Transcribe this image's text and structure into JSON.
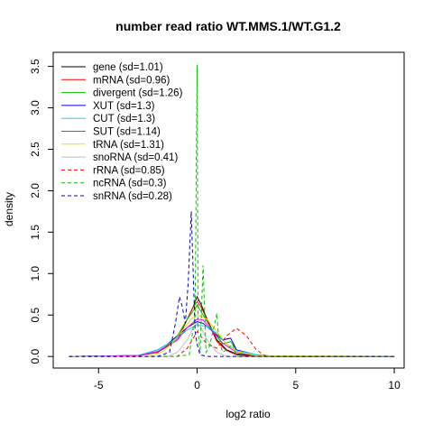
{
  "chart_data": {
    "type": "line",
    "title": "number read ratio WT.MMS.1/WT.G1.2",
    "xlabel": "log2 ratio",
    "ylabel": "density",
    "xlim": [
      -7.3,
      10.5
    ],
    "ylim": [
      -0.14,
      3.67
    ],
    "xticks": [
      -5,
      0,
      5,
      10
    ],
    "yticks": [
      0.0,
      0.5,
      1.0,
      1.5,
      2.0,
      2.5,
      3.0,
      3.5
    ],
    "xtick_labels": [
      "-5",
      "0",
      "5",
      "10"
    ],
    "ytick_labels": [
      "0.0",
      "0.5",
      "1.0",
      "1.5",
      "2.0",
      "2.5",
      "3.0",
      "3.5"
    ],
    "legend_position": "top-left",
    "grid": false,
    "series": [
      {
        "name": "gene (sd=1.01)",
        "color": "#000000",
        "dash": "solid",
        "points": [
          [
            -6.5,
            0
          ],
          [
            -3,
            0.01
          ],
          [
            -2,
            0.05
          ],
          [
            -1,
            0.2
          ],
          [
            -0.5,
            0.45
          ],
          [
            -0.2,
            0.6
          ],
          [
            0,
            0.72
          ],
          [
            0.2,
            0.63
          ],
          [
            0.5,
            0.45
          ],
          [
            1,
            0.2
          ],
          [
            1.5,
            0.08
          ],
          [
            2,
            0.03
          ],
          [
            3,
            0.01
          ],
          [
            4,
            0
          ],
          [
            10,
            0
          ]
        ]
      },
      {
        "name": "mRNA (sd=0.96)",
        "color": "#ff0000",
        "dash": "solid",
        "points": [
          [
            -6.5,
            0
          ],
          [
            -3,
            0.01
          ],
          [
            -2,
            0.05
          ],
          [
            -1,
            0.22
          ],
          [
            -0.5,
            0.45
          ],
          [
            -0.2,
            0.6
          ],
          [
            0,
            0.66
          ],
          [
            0.2,
            0.6
          ],
          [
            0.5,
            0.44
          ],
          [
            1,
            0.18
          ],
          [
            1.5,
            0.07
          ],
          [
            2,
            0.02
          ],
          [
            3,
            0
          ],
          [
            10,
            0
          ]
        ]
      },
      {
        "name": "divergent (sd=1.26)",
        "color": "#00c000",
        "dash": "solid",
        "points": [
          [
            -6.5,
            0
          ],
          [
            -3,
            0.01
          ],
          [
            -2,
            0.08
          ],
          [
            -1.5,
            0.15
          ],
          [
            -1,
            0.25
          ],
          [
            -0.5,
            0.45
          ],
          [
            0,
            0.62
          ],
          [
            0.3,
            0.5
          ],
          [
            0.8,
            0.3
          ],
          [
            1.3,
            0.15
          ],
          [
            1.7,
            0.18
          ],
          [
            2,
            0.08
          ],
          [
            2.5,
            0.03
          ],
          [
            3.5,
            0
          ],
          [
            10,
            0
          ]
        ]
      },
      {
        "name": "XUT (sd=1.3)",
        "color": "#0000ff",
        "dash": "solid",
        "points": [
          [
            -6.5,
            0
          ],
          [
            -3,
            0.01
          ],
          [
            -2,
            0.08
          ],
          [
            -1.5,
            0.15
          ],
          [
            -1,
            0.25
          ],
          [
            -0.5,
            0.35
          ],
          [
            0,
            0.42
          ],
          [
            0.3,
            0.4
          ],
          [
            0.8,
            0.3
          ],
          [
            1.3,
            0.2
          ],
          [
            1.7,
            0.22
          ],
          [
            2,
            0.08
          ],
          [
            3,
            0.02
          ],
          [
            4,
            0
          ],
          [
            10,
            0
          ]
        ]
      },
      {
        "name": "CUT (sd=1.3)",
        "color": "#00e5e5",
        "dash": "solid",
        "points": [
          [
            -6.5,
            0
          ],
          [
            -3,
            0.01
          ],
          [
            -2,
            0.08
          ],
          [
            -1.5,
            0.15
          ],
          [
            -1,
            0.22
          ],
          [
            -0.5,
            0.32
          ],
          [
            0,
            0.38
          ],
          [
            0.5,
            0.36
          ],
          [
            1,
            0.28
          ],
          [
            1.5,
            0.15
          ],
          [
            2,
            0.07
          ],
          [
            3,
            0.02
          ],
          [
            4,
            0
          ],
          [
            10,
            0
          ]
        ]
      },
      {
        "name": "SUT (sd=1.14)",
        "color": "#ff00ff",
        "dash": "solid",
        "points": [
          [
            -6.5,
            0
          ],
          [
            -3,
            0.01
          ],
          [
            -2,
            0.06
          ],
          [
            -1,
            0.2
          ],
          [
            -0.5,
            0.35
          ],
          [
            0,
            0.45
          ],
          [
            0.3,
            0.44
          ],
          [
            0.8,
            0.3
          ],
          [
            1.3,
            0.16
          ],
          [
            2,
            0.05
          ],
          [
            3,
            0.01
          ],
          [
            4,
            0
          ],
          [
            10,
            0
          ]
        ]
      },
      {
        "name": "tRNA (sd=1.31)",
        "color": "#e5e500",
        "dash": "solid",
        "points": [
          [
            -6.5,
            0
          ],
          [
            -2.5,
            0
          ],
          [
            -1.8,
            0.05
          ],
          [
            -1.3,
            0.15
          ],
          [
            -0.8,
            0.3
          ],
          [
            -0.3,
            0.45
          ],
          [
            0,
            0.5
          ],
          [
            0.5,
            0.45
          ],
          [
            1,
            0.3
          ],
          [
            1.5,
            0.15
          ],
          [
            2,
            0.06
          ],
          [
            3,
            0.01
          ],
          [
            10,
            0
          ]
        ]
      },
      {
        "name": "snoRNA (sd=0.41)",
        "color": "#bebebe",
        "dash": "solid",
        "points": [
          [
            -6.5,
            0
          ],
          [
            -1.5,
            0
          ],
          [
            -1,
            0.05
          ],
          [
            -0.5,
            0.2
          ],
          [
            -0.2,
            0.35
          ],
          [
            0,
            0.4
          ],
          [
            0.2,
            0.35
          ],
          [
            0.5,
            0.2
          ],
          [
            1,
            0.05
          ],
          [
            1.5,
            0
          ],
          [
            10,
            0
          ]
        ]
      },
      {
        "name": "rRNA (sd=0.85)",
        "color": "#ff0000",
        "dash": "dashed",
        "points": [
          [
            -6.5,
            0
          ],
          [
            -1,
            0
          ],
          [
            -0.5,
            0.1
          ],
          [
            0,
            0.3
          ],
          [
            0.5,
            0.15
          ],
          [
            1,
            0.1
          ],
          [
            1.5,
            0.25
          ],
          [
            2,
            0.34
          ],
          [
            2.5,
            0.25
          ],
          [
            3,
            0.08
          ],
          [
            3.5,
            0
          ],
          [
            10,
            0
          ]
        ]
      },
      {
        "name": "ncRNA (sd=0.3)",
        "color": "#00c000",
        "dash": "dashed",
        "points": [
          [
            -6.5,
            0
          ],
          [
            -1,
            0
          ],
          [
            -0.4,
            0.02
          ],
          [
            -0.1,
            0.5
          ],
          [
            0,
            3.52
          ],
          [
            0.05,
            0.3
          ],
          [
            0.15,
            0.05
          ],
          [
            0.3,
            1.1
          ],
          [
            0.45,
            0.05
          ],
          [
            0.6,
            0.1
          ],
          [
            0.9,
            0.4
          ],
          [
            1,
            0.52
          ],
          [
            1.1,
            0.2
          ],
          [
            1.3,
            0.05
          ],
          [
            1.6,
            0.1
          ],
          [
            1.8,
            0.15
          ],
          [
            2,
            0
          ],
          [
            10,
            0
          ]
        ]
      },
      {
        "name": "snRNA (sd=0.28)",
        "color": "#0000c0",
        "dash": "dashed",
        "points": [
          [
            -6.5,
            0
          ],
          [
            -2,
            0
          ],
          [
            -1.4,
            0.05
          ],
          [
            -1.1,
            0.4
          ],
          [
            -0.9,
            0.72
          ],
          [
            -0.75,
            0.6
          ],
          [
            -0.6,
            0.4
          ],
          [
            -0.45,
            0.9
          ],
          [
            -0.3,
            1.75
          ],
          [
            -0.2,
            1.0
          ],
          [
            -0.1,
            0.3
          ],
          [
            0,
            0.15
          ],
          [
            0.15,
            0.02
          ],
          [
            0.5,
            0
          ],
          [
            10,
            0
          ]
        ]
      }
    ]
  }
}
